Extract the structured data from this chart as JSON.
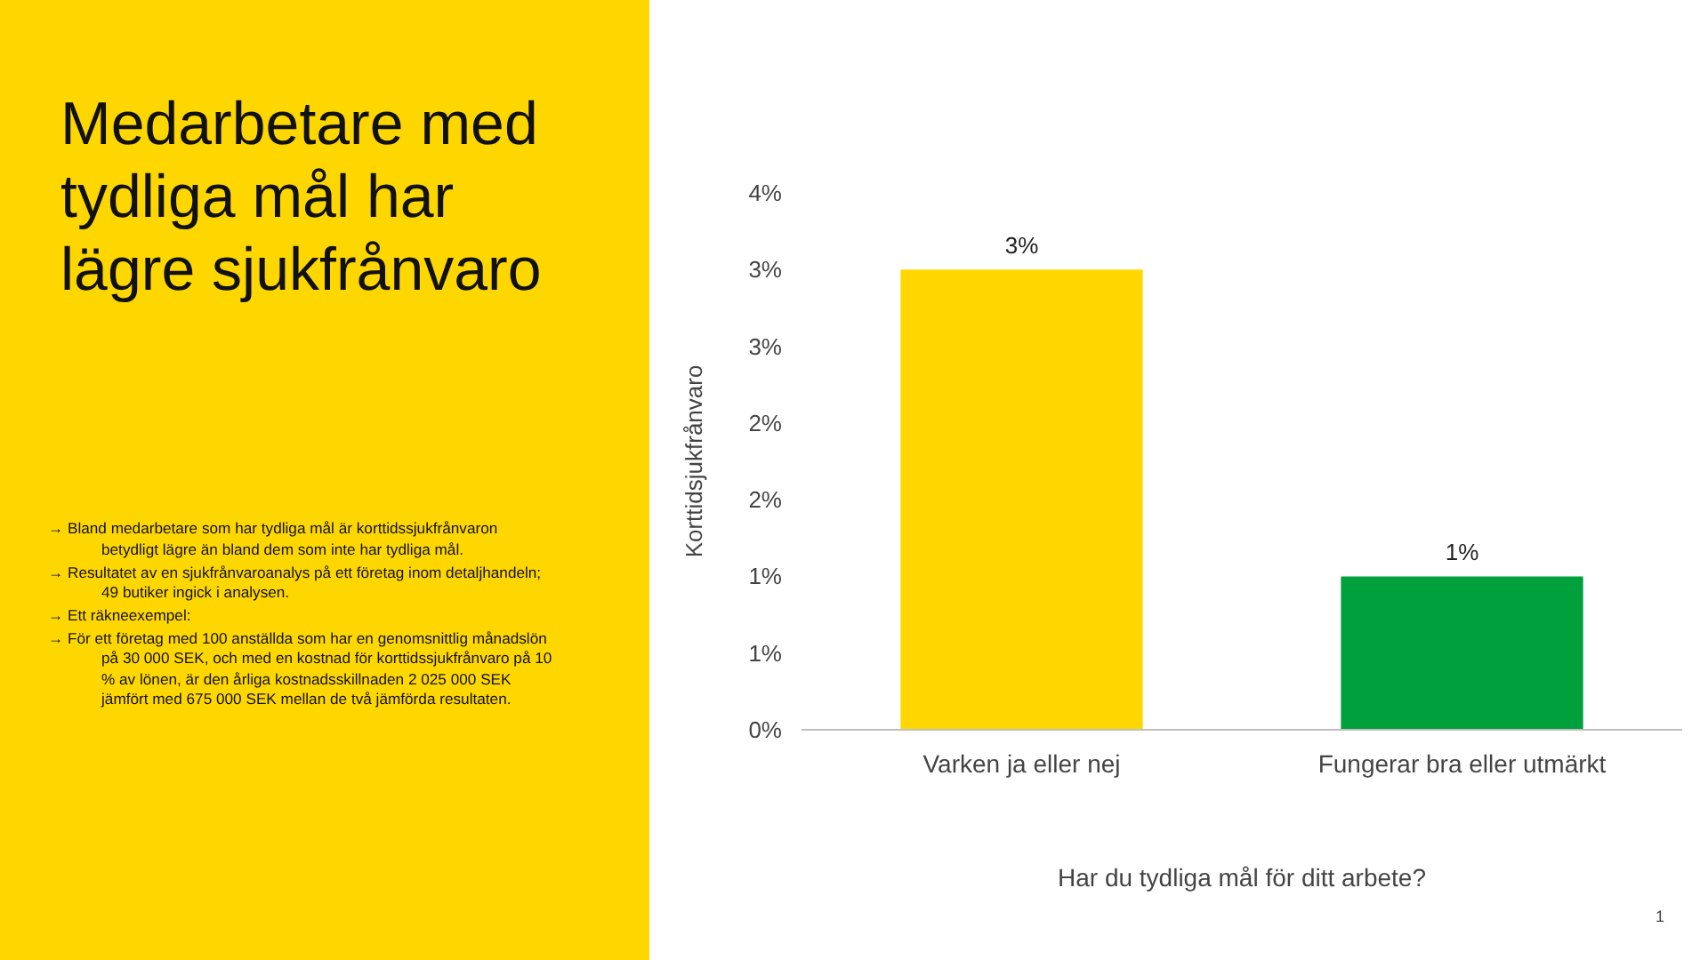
{
  "chart_data": {
    "type": "bar",
    "title": "Medarbetare med tydliga mål har lägre sjukfrånvaro",
    "categories": [
      "Varken ja eller nej",
      "Fungerar bra eller utmärkt"
    ],
    "values": [
      3.0,
      1.0
    ],
    "colors": [
      "#ffd700",
      "#00a03c"
    ],
    "value_labels": [
      "3%",
      "1%"
    ],
    "xlabel": "Har du tydliga mål för ditt arbete?",
    "ylabel": "Korttidsjukfrånvaro",
    "ylim": [
      0,
      3.5
    ],
    "yticks": [
      {
        "value": 0,
        "label": "0%"
      },
      {
        "value": 0.5,
        "label": "1%"
      },
      {
        "value": 1.0,
        "label": "1%"
      },
      {
        "value": 1.5,
        "label": "2%"
      },
      {
        "value": 2.0,
        "label": "2%"
      },
      {
        "value": 2.5,
        "label": "3%"
      },
      {
        "value": 3.0,
        "label": "3%"
      },
      {
        "value": 3.5,
        "label": "4%"
      }
    ],
    "grid": false,
    "annotations": [
      "→ Bland medarbetare som har tydliga mål är korttidssjukfrånvaron betydligt lägre än bland dem som inte har tydliga mål.",
      "→ Resultatet av en sjukfrånvaroanalys på ett företag inom detaljhandeln; 49 butiker ingick i analysen.",
      "→ Ett räkneexempel:",
      "→ För ett företag med 100 anställda som har en genomsnittlig månadslön på 30 000 SEK, och med en kostnad för korttidssjukfrånvaro på 10 % av lönen, är den årliga kostnadsskillnaden 2 025 000 SEK jämfört med 675 000 SEK mellan de två jämförda resultaten.",
      "1"
    ]
  }
}
